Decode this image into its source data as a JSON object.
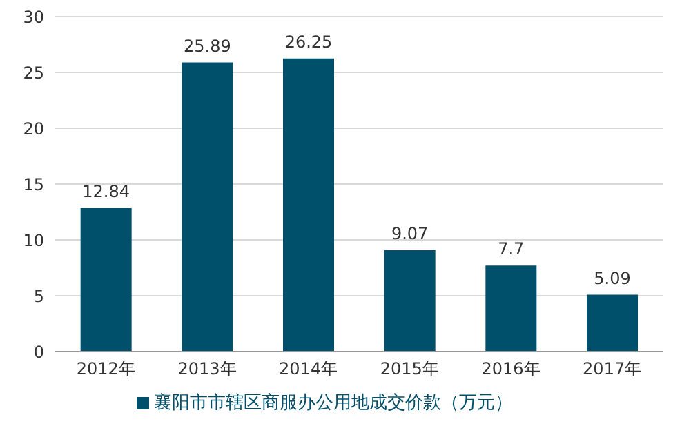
{
  "chart_data": {
    "type": "bar",
    "categories": [
      "2012年",
      "2013年",
      "2014年",
      "2015年",
      "2016年",
      "2017年"
    ],
    "series": [
      {
        "name": "襄阳市市辖区商服办公用地成交价款（万元）",
        "color": "#00506b",
        "values": [
          12.84,
          25.89,
          26.25,
          9.07,
          7.7,
          5.09
        ]
      }
    ],
    "ylim": [
      0,
      30
    ],
    "yticks": [
      0,
      5,
      10,
      15,
      20,
      25,
      30
    ],
    "grid": "y",
    "legend": "bottom",
    "data_labels": true
  }
}
